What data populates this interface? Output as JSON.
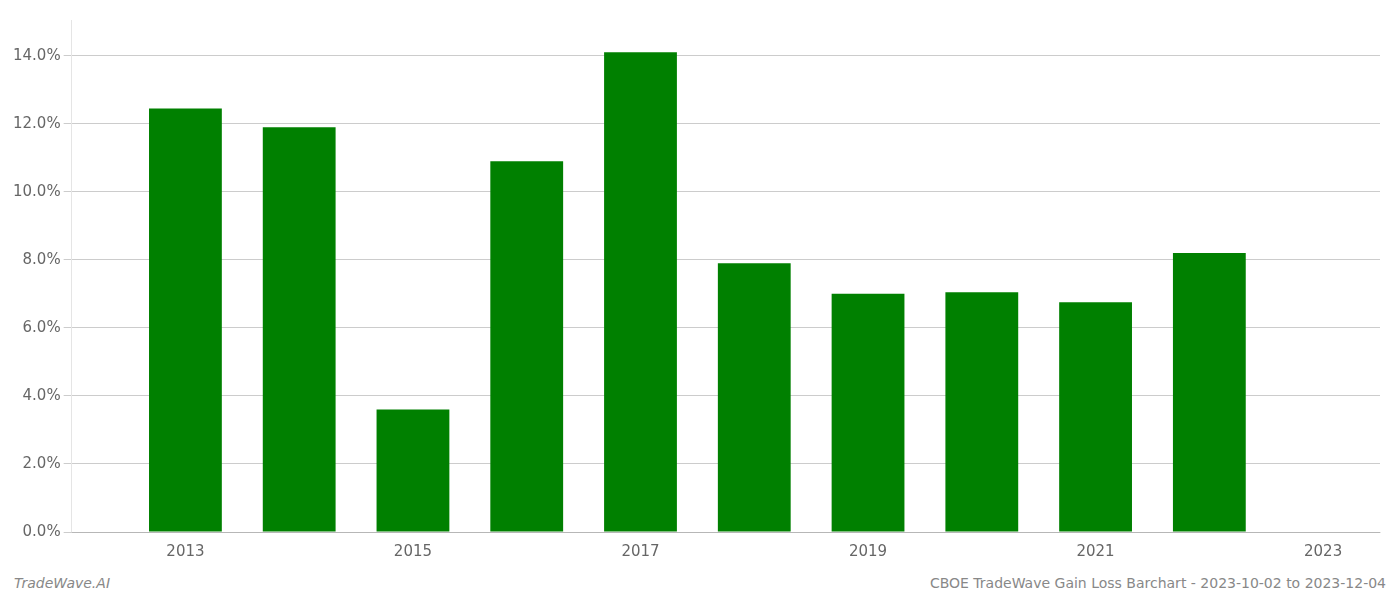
{
  "chart_data": {
    "type": "bar",
    "x": [
      2013,
      2014,
      2015,
      2016,
      2017,
      2018,
      2019,
      2020,
      2021,
      2022
    ],
    "values": [
      0.1245,
      0.119,
      0.036,
      0.109,
      0.141,
      0.079,
      0.07,
      0.0705,
      0.0675,
      0.082
    ],
    "color": "#008000",
    "xlim": [
      2012.0,
      2023.5
    ],
    "xticks": [
      2013,
      2015,
      2017,
      2019,
      2021,
      2023
    ],
    "ylim": [
      0.0,
      0.1505
    ],
    "yticks": [
      {
        "value": 0.0,
        "label": "0.0%"
      },
      {
        "value": 0.02,
        "label": "2.0%"
      },
      {
        "value": 0.04,
        "label": "4.0%"
      },
      {
        "value": 0.06,
        "label": "6.0%"
      },
      {
        "value": 0.08,
        "label": "8.0%"
      },
      {
        "value": 0.1,
        "label": "10.0%"
      },
      {
        "value": 0.12,
        "label": "12.0%"
      },
      {
        "value": 0.14,
        "label": "14.0%"
      }
    ],
    "grid": "y",
    "annotations": [
      "TradeWave.AI",
      "CBOE TradeWave Gain Loss Barchart - 2023-10-02 to 2023-12-04"
    ]
  }
}
